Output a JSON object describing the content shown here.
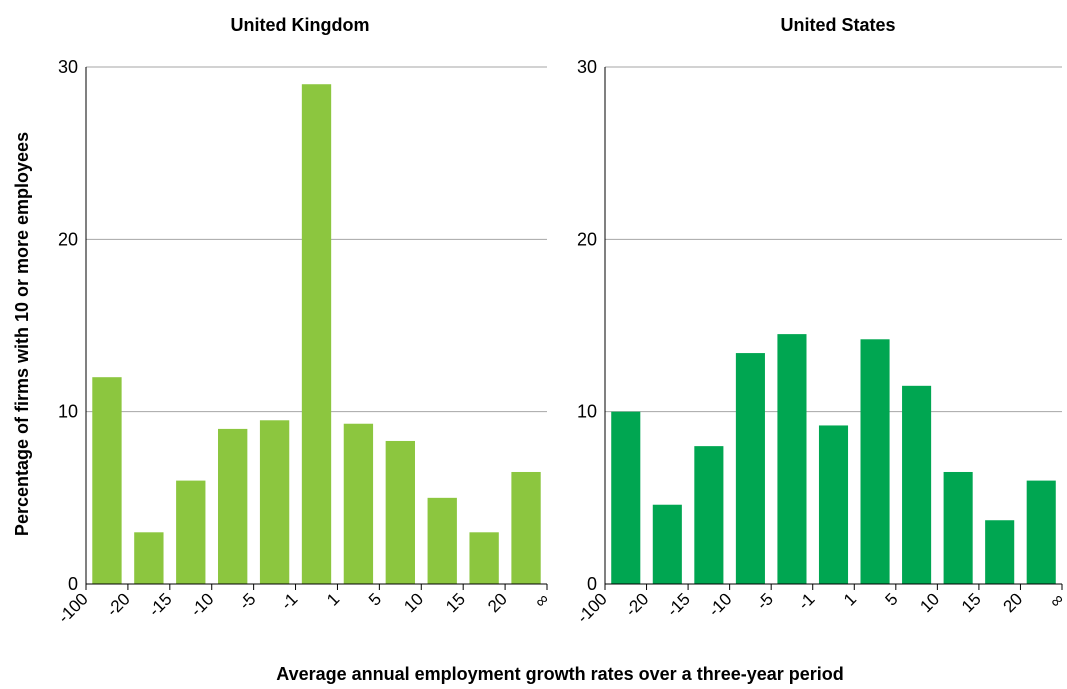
{
  "chart_data": {
    "type": "bar",
    "ylabel": "Percentage of firms with 10 or more employees",
    "xlabel": "Average annual employment growth rates over a three-year period",
    "ylim": [
      0,
      30
    ],
    "yticks": [
      0,
      10,
      20,
      30
    ],
    "grid": true,
    "x_boundaries": [
      "-100",
      "-20",
      "-15",
      "-10",
      "-5",
      "-1",
      "1",
      "5",
      "10",
      "15",
      "20",
      "∞"
    ],
    "panels": [
      {
        "title": "United Kingdom",
        "color": "#8cc63f",
        "values": [
          12,
          3,
          6,
          9,
          9.5,
          29,
          9.3,
          8.3,
          5,
          3,
          6.5
        ]
      },
      {
        "title": "United States",
        "color": "#00a651",
        "values": [
          10,
          4.6,
          8,
          13.4,
          14.5,
          9.2,
          14.2,
          11.5,
          6.5,
          3.7,
          6
        ]
      }
    ]
  }
}
